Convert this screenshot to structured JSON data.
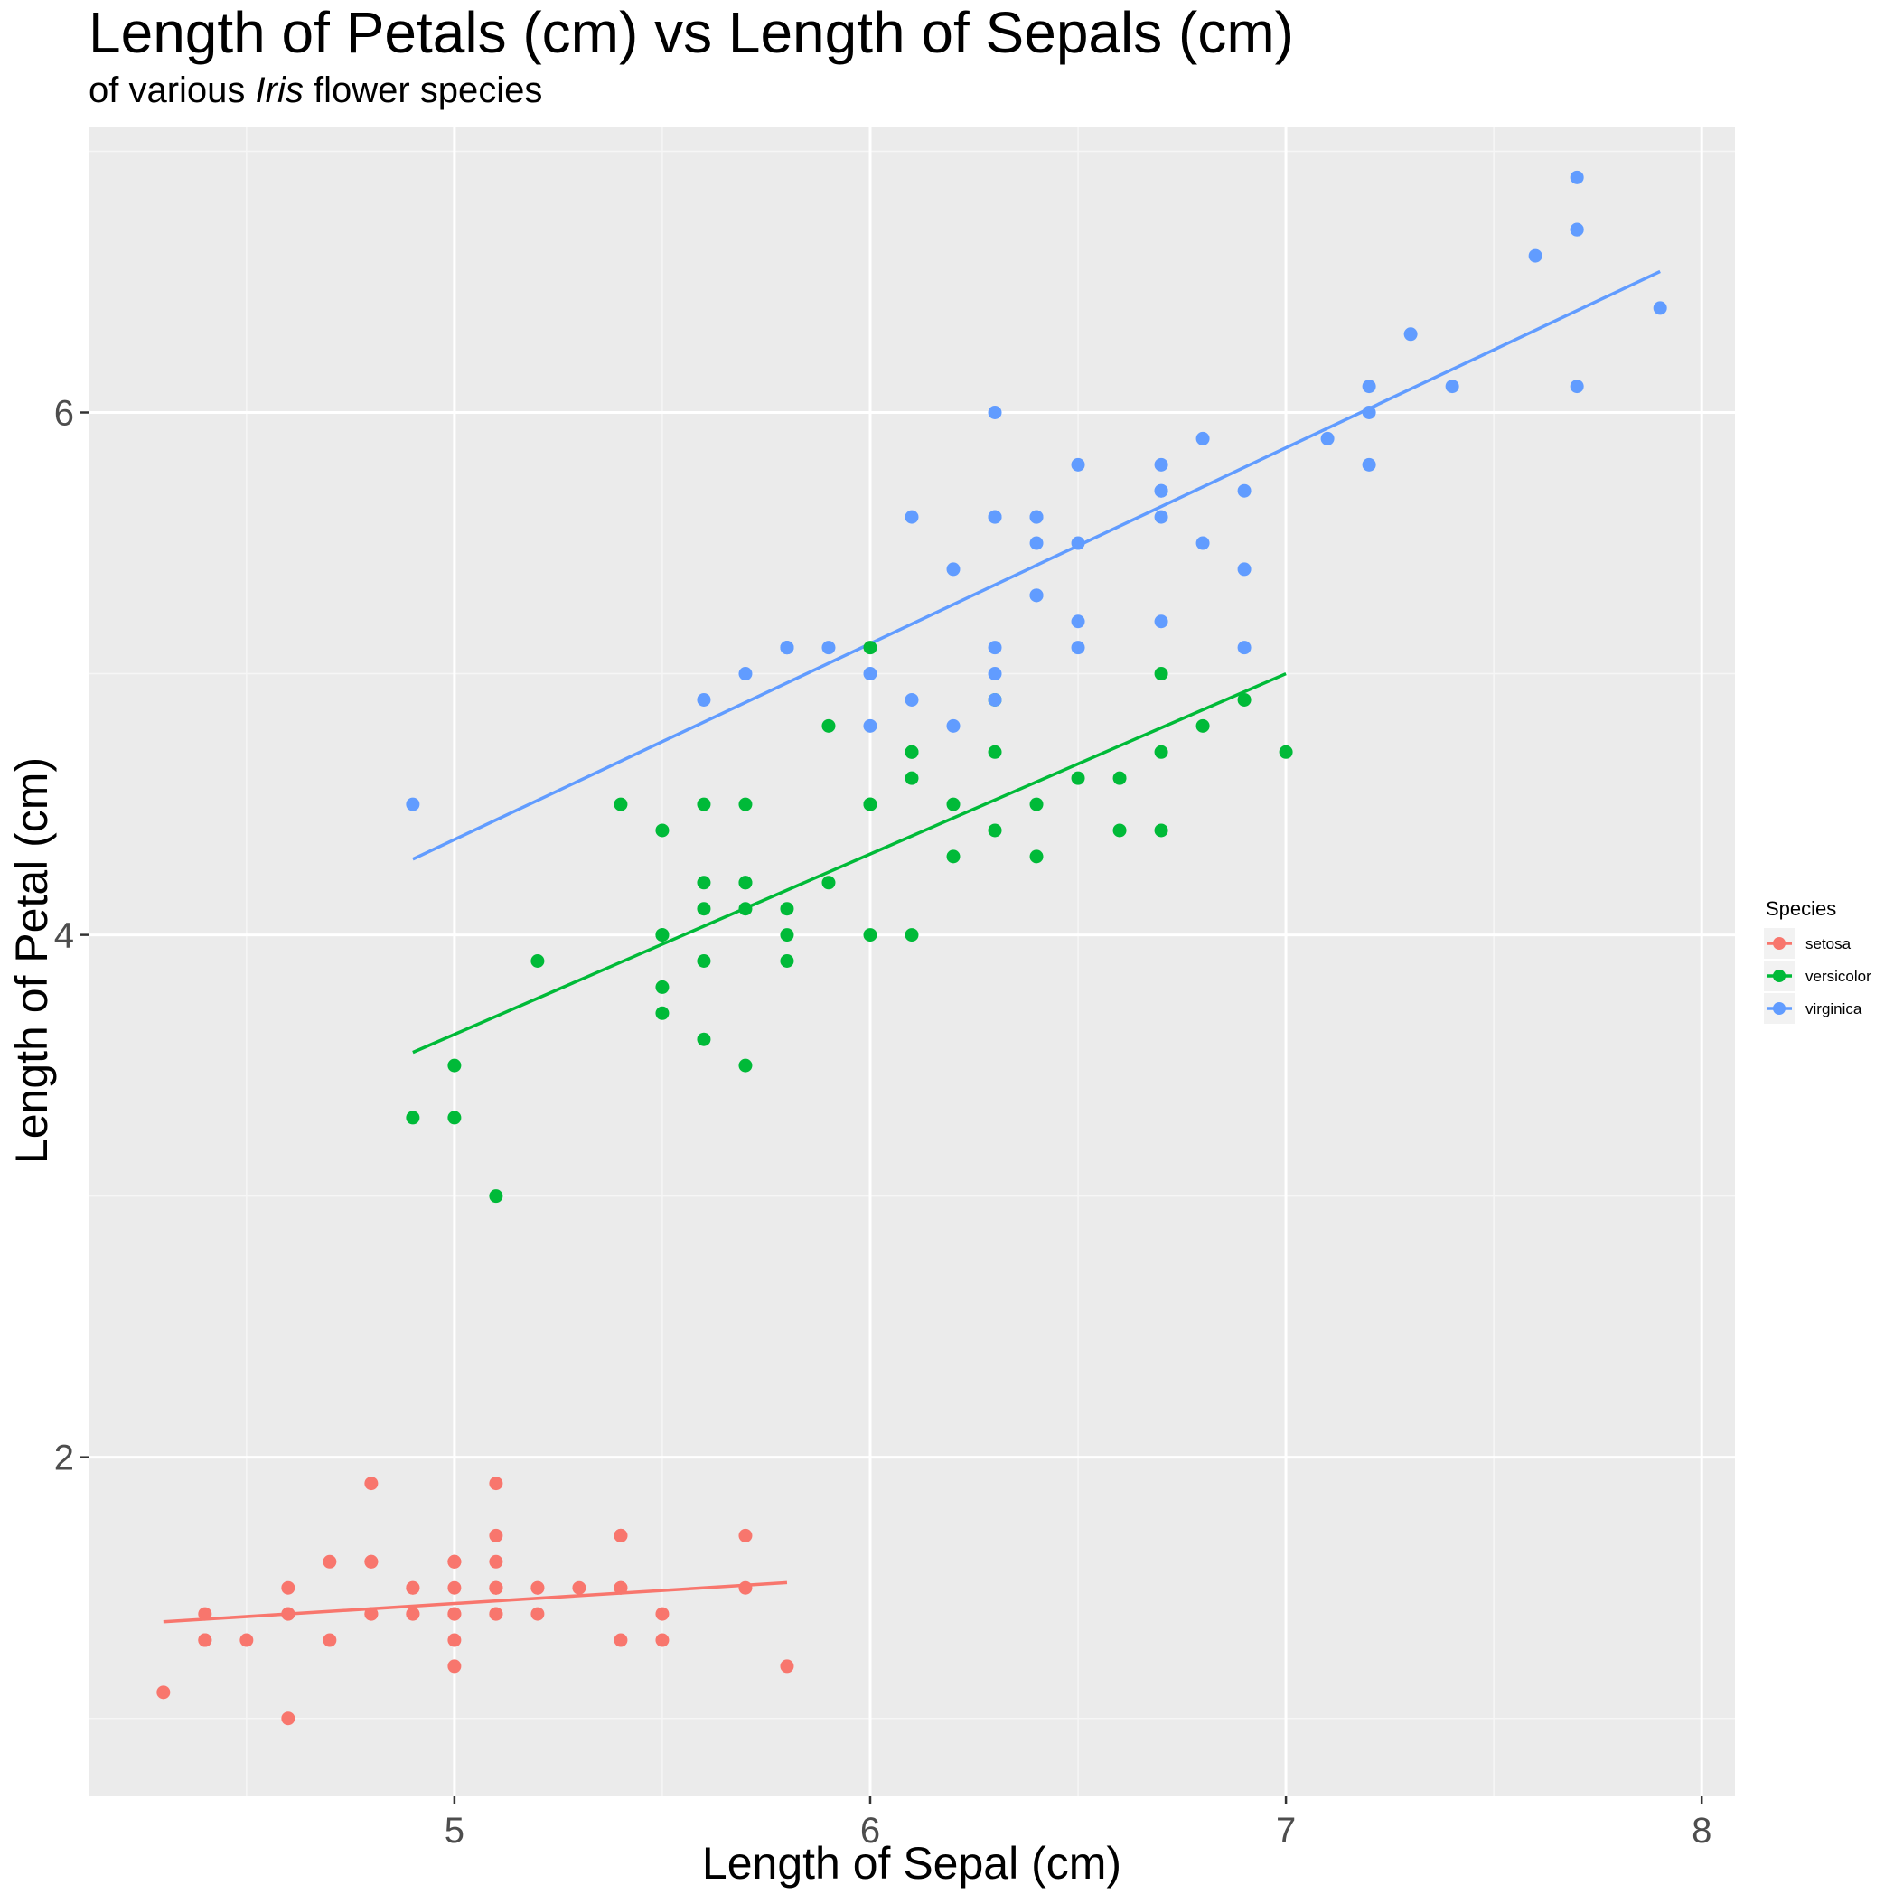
{
  "chart_data": {
    "type": "scatter",
    "title": "Length of Petals (cm) vs Length of Sepals (cm)",
    "subtitle_parts": [
      "of various ",
      "Iris",
      " flower species"
    ],
    "xlabel": "Length of Sepal (cm)",
    "ylabel": "Length of Petal (cm)",
    "xlim": [
      4.12,
      8.08
    ],
    "ylim": [
      0.705,
      7.095
    ],
    "x_major_ticks": [
      5,
      6,
      7,
      8
    ],
    "x_tick_labels": [
      "5",
      "6",
      "7",
      "8"
    ],
    "x_minor_ticks": [
      4.5,
      5.5,
      6.5,
      7.5
    ],
    "y_major_ticks": [
      2,
      4,
      6
    ],
    "y_tick_labels": [
      "2",
      "4",
      "6"
    ],
    "y_minor_ticks": [
      1,
      3,
      5,
      7
    ],
    "grid": true,
    "legend": {
      "title": "Species",
      "position": "right"
    },
    "series": [
      {
        "name": "setosa",
        "color": "#F8766D",
        "fit": [
          [
            4.3,
            1.37
          ],
          [
            5.8,
            1.52
          ]
        ],
        "points": [
          [
            5.1,
            1.4
          ],
          [
            4.9,
            1.4
          ],
          [
            4.7,
            1.3
          ],
          [
            4.6,
            1.5
          ],
          [
            5.0,
            1.4
          ],
          [
            5.4,
            1.7
          ],
          [
            4.6,
            1.4
          ],
          [
            5.0,
            1.5
          ],
          [
            4.4,
            1.4
          ],
          [
            4.9,
            1.5
          ],
          [
            5.4,
            1.5
          ],
          [
            4.8,
            1.6
          ],
          [
            4.8,
            1.4
          ],
          [
            4.3,
            1.1
          ],
          [
            5.8,
            1.2
          ],
          [
            5.7,
            1.5
          ],
          [
            5.4,
            1.3
          ],
          [
            5.1,
            1.4
          ],
          [
            5.7,
            1.7
          ],
          [
            5.1,
            1.5
          ],
          [
            5.4,
            1.7
          ],
          [
            5.1,
            1.5
          ],
          [
            4.6,
            1.0
          ],
          [
            5.1,
            1.7
          ],
          [
            4.8,
            1.9
          ],
          [
            5.0,
            1.6
          ],
          [
            5.0,
            1.6
          ],
          [
            5.2,
            1.5
          ],
          [
            5.2,
            1.4
          ],
          [
            4.7,
            1.6
          ],
          [
            4.8,
            1.6
          ],
          [
            5.4,
            1.5
          ],
          [
            5.2,
            1.5
          ],
          [
            5.5,
            1.4
          ],
          [
            4.9,
            1.5
          ],
          [
            5.0,
            1.2
          ],
          [
            5.5,
            1.3
          ],
          [
            4.9,
            1.4
          ],
          [
            4.4,
            1.3
          ],
          [
            5.1,
            1.5
          ],
          [
            5.0,
            1.3
          ],
          [
            4.5,
            1.3
          ],
          [
            4.4,
            1.3
          ],
          [
            5.0,
            1.6
          ],
          [
            5.1,
            1.9
          ],
          [
            4.8,
            1.4
          ],
          [
            5.1,
            1.6
          ],
          [
            4.6,
            1.4
          ],
          [
            5.3,
            1.5
          ],
          [
            5.0,
            1.4
          ]
        ]
      },
      {
        "name": "versicolor",
        "color": "#00BA38",
        "fit": [
          [
            4.9,
            3.55
          ],
          [
            7.0,
            5.0
          ]
        ],
        "points": [
          [
            7.0,
            4.7
          ],
          [
            6.4,
            4.5
          ],
          [
            6.9,
            4.9
          ],
          [
            5.5,
            4.0
          ],
          [
            6.5,
            4.6
          ],
          [
            5.7,
            4.5
          ],
          [
            6.3,
            4.7
          ],
          [
            4.9,
            3.3
          ],
          [
            6.6,
            4.6
          ],
          [
            5.2,
            3.9
          ],
          [
            5.0,
            3.5
          ],
          [
            5.9,
            4.2
          ],
          [
            6.0,
            4.0
          ],
          [
            6.1,
            4.7
          ],
          [
            5.6,
            3.6
          ],
          [
            6.7,
            4.4
          ],
          [
            5.6,
            4.5
          ],
          [
            5.8,
            4.1
          ],
          [
            6.2,
            4.5
          ],
          [
            5.6,
            3.9
          ],
          [
            5.9,
            4.8
          ],
          [
            6.1,
            4.0
          ],
          [
            6.3,
            4.9
          ],
          [
            6.1,
            4.7
          ],
          [
            6.4,
            4.3
          ],
          [
            6.6,
            4.4
          ],
          [
            6.8,
            4.8
          ],
          [
            6.7,
            5.0
          ],
          [
            6.0,
            4.5
          ],
          [
            5.7,
            3.5
          ],
          [
            5.5,
            3.8
          ],
          [
            5.5,
            3.7
          ],
          [
            5.8,
            3.9
          ],
          [
            6.0,
            5.1
          ],
          [
            5.4,
            4.5
          ],
          [
            6.0,
            4.5
          ],
          [
            6.7,
            4.7
          ],
          [
            6.3,
            4.4
          ],
          [
            5.6,
            4.1
          ],
          [
            5.5,
            4.0
          ],
          [
            5.5,
            4.4
          ],
          [
            6.1,
            4.6
          ],
          [
            5.8,
            4.0
          ],
          [
            5.0,
            3.3
          ],
          [
            5.6,
            4.2
          ],
          [
            5.7,
            4.2
          ],
          [
            5.7,
            4.2
          ],
          [
            6.2,
            4.3
          ],
          [
            5.1,
            3.0
          ],
          [
            5.7,
            4.1
          ]
        ]
      },
      {
        "name": "virginica",
        "color": "#619CFF",
        "fit": [
          [
            4.9,
            4.29
          ],
          [
            7.9,
            6.54
          ]
        ],
        "points": [
          [
            6.3,
            6.0
          ],
          [
            5.8,
            5.1
          ],
          [
            7.1,
            5.9
          ],
          [
            6.3,
            5.6
          ],
          [
            6.5,
            5.8
          ],
          [
            7.6,
            6.6
          ],
          [
            4.9,
            4.5
          ],
          [
            7.3,
            6.3
          ],
          [
            6.7,
            5.8
          ],
          [
            7.2,
            6.1
          ],
          [
            6.5,
            5.1
          ],
          [
            6.4,
            5.3
          ],
          [
            6.8,
            5.5
          ],
          [
            5.7,
            5.0
          ],
          [
            5.8,
            5.1
          ],
          [
            6.4,
            5.3
          ],
          [
            6.5,
            5.5
          ],
          [
            7.7,
            6.7
          ],
          [
            7.7,
            6.9
          ],
          [
            6.0,
            5.0
          ],
          [
            6.9,
            5.7
          ],
          [
            5.6,
            4.9
          ],
          [
            7.7,
            6.7
          ],
          [
            6.3,
            4.9
          ],
          [
            6.7,
            5.7
          ],
          [
            7.2,
            6.0
          ],
          [
            6.2,
            4.8
          ],
          [
            6.1,
            4.9
          ],
          [
            6.4,
            5.6
          ],
          [
            7.2,
            5.8
          ],
          [
            7.4,
            6.1
          ],
          [
            7.9,
            6.4
          ],
          [
            6.4,
            5.6
          ],
          [
            6.3,
            5.1
          ],
          [
            6.1,
            5.6
          ],
          [
            7.7,
            6.1
          ],
          [
            6.3,
            5.6
          ],
          [
            6.4,
            5.5
          ],
          [
            6.0,
            4.8
          ],
          [
            6.9,
            5.4
          ],
          [
            6.7,
            5.6
          ],
          [
            6.9,
            5.1
          ],
          [
            5.8,
            5.1
          ],
          [
            6.8,
            5.9
          ],
          [
            6.7,
            5.7
          ],
          [
            6.7,
            5.2
          ],
          [
            6.3,
            5.0
          ],
          [
            6.5,
            5.2
          ],
          [
            6.2,
            5.4
          ],
          [
            5.9,
            5.1
          ]
        ]
      }
    ]
  }
}
